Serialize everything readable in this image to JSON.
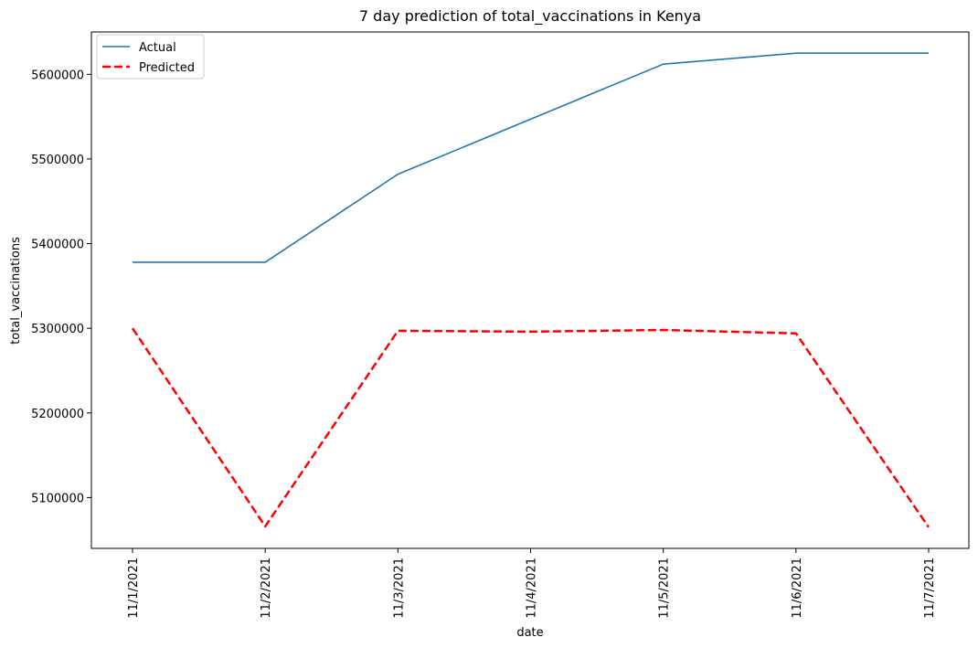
{
  "chart_data": {
    "type": "line",
    "title": "7 day prediction of total_vaccinations in Kenya",
    "xlabel": "date",
    "ylabel": "total_vaccinations",
    "categories": [
      "11/1/2021",
      "11/2/2021",
      "11/3/2021",
      "11/4/2021",
      "11/5/2021",
      "11/6/2021",
      "11/7/2021"
    ],
    "ylim": [
      5040000,
      5650000
    ],
    "yticks": [
      5100000,
      5200000,
      5300000,
      5400000,
      5500000,
      5600000
    ],
    "grid": false,
    "legend_position": "top-left",
    "series": [
      {
        "name": "Actual",
        "color": "#1f77b4",
        "dash": "solid",
        "values": [
          5378000,
          5378000,
          5482000,
          5547000,
          5612000,
          5625000,
          5625000
        ]
      },
      {
        "name": "Predicted",
        "color": "#ff0000",
        "dash": "dashed",
        "values": [
          5300000,
          5066000,
          5297000,
          5296000,
          5298000,
          5294000,
          5065000
        ]
      }
    ]
  }
}
